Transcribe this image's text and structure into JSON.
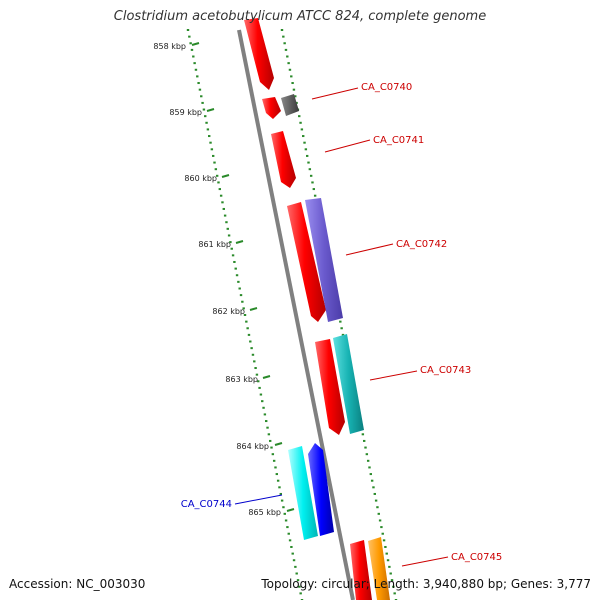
{
  "title": "Clostridium acetobutylicum ATCC 824, complete genome",
  "ticks": [
    "858 kbp",
    "859 kbp",
    "860 kbp",
    "861 kbp",
    "862 kbp",
    "863 kbp",
    "864 kbp",
    "865 kbp"
  ],
  "gene_labels": [
    {
      "text": "CA_C0740",
      "color": "#cc0000"
    },
    {
      "text": "CA_C0741",
      "color": "#cc0000"
    },
    {
      "text": "CA_C0742",
      "color": "#cc0000"
    },
    {
      "text": "CA_C0743",
      "color": "#cc0000"
    },
    {
      "text": "CA_C0744",
      "color": "#0000cc"
    },
    {
      "text": "CA_C0745",
      "color": "#cc0000"
    }
  ],
  "colors": {
    "backbone": "#777777",
    "ticks": "#2a8a2a",
    "red_gene": "#ee0000",
    "gray_gene": "#555555",
    "purple_gene": "#6a5acd",
    "teal_gene": "#1ab5b5",
    "cyan_gene": "#00e5e5",
    "blue_gene": "#0000ee",
    "orange_gene": "#ff8c00"
  },
  "footer": {
    "accession": "Accession: NC_003030",
    "summary": "Topology: circular; Length: 3,940,880 bp; Genes: 3,777"
  }
}
